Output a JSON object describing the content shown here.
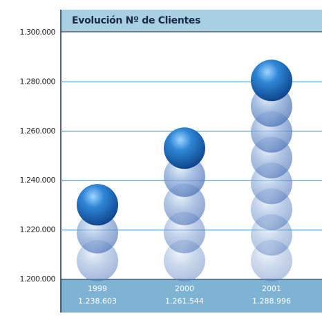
{
  "chart_data": {
    "type": "sphere-bar",
    "title": "Evolución Nº de Clientes",
    "categories": [
      "1999",
      "2000",
      "2001"
    ],
    "values": [
      1238603,
      1261544,
      1288996
    ],
    "value_labels": [
      "1.238.603",
      "1.261.544",
      "1.288.996"
    ],
    "color": "#1f6fb8",
    "ylim": [
      1200000,
      1300000
    ],
    "yticks": [
      {
        "value": 1200000,
        "label": "1.200.000"
      },
      {
        "value": 1220000,
        "label": "1.220.000"
      },
      {
        "value": 1240000,
        "label": "1.240.000"
      },
      {
        "value": 1260000,
        "label": "1.260.000"
      },
      {
        "value": 1280000,
        "label": "1.280.000"
      },
      {
        "value": 1300000,
        "label": "1.300.000"
      }
    ],
    "grid": true
  }
}
